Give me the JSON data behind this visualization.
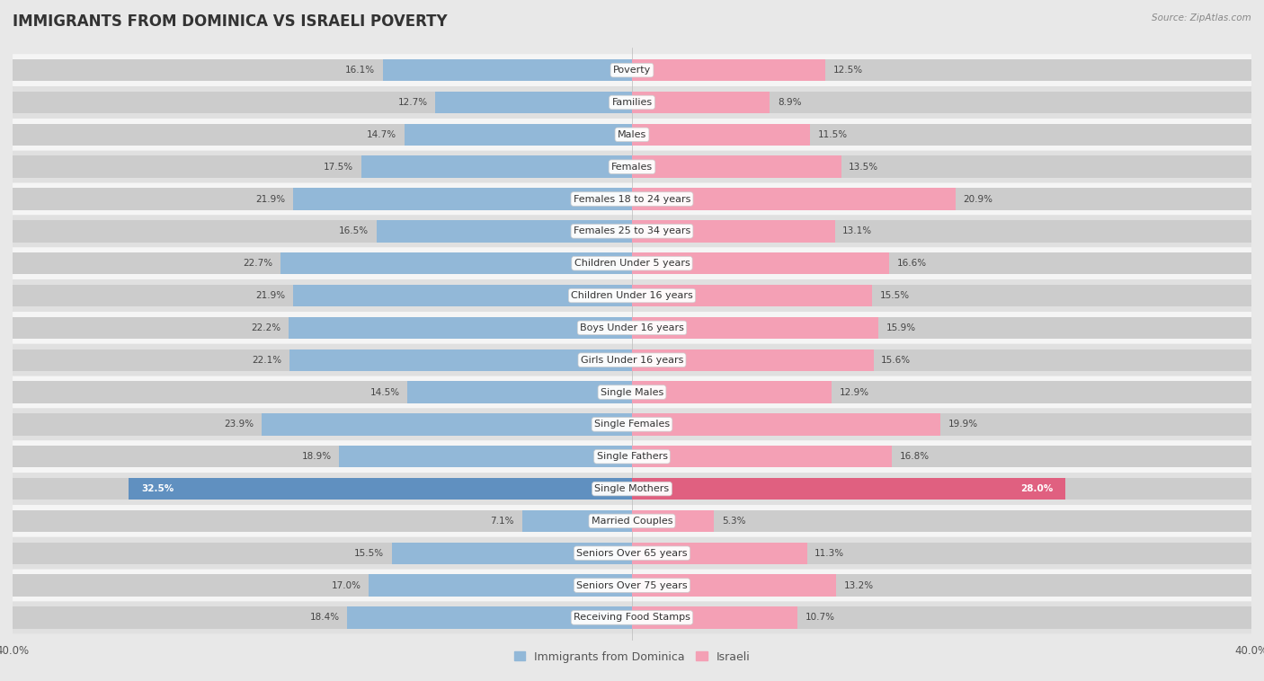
{
  "title": "IMMIGRANTS FROM DOMINICA VS ISRAELI POVERTY",
  "source": "Source: ZipAtlas.com",
  "categories": [
    "Poverty",
    "Families",
    "Males",
    "Females",
    "Females 18 to 24 years",
    "Females 25 to 34 years",
    "Children Under 5 years",
    "Children Under 16 years",
    "Boys Under 16 years",
    "Girls Under 16 years",
    "Single Males",
    "Single Females",
    "Single Fathers",
    "Single Mothers",
    "Married Couples",
    "Seniors Over 65 years",
    "Seniors Over 75 years",
    "Receiving Food Stamps"
  ],
  "dominica_values": [
    16.1,
    12.7,
    14.7,
    17.5,
    21.9,
    16.5,
    22.7,
    21.9,
    22.2,
    22.1,
    14.5,
    23.9,
    18.9,
    32.5,
    7.1,
    15.5,
    17.0,
    18.4
  ],
  "israeli_values": [
    12.5,
    8.9,
    11.5,
    13.5,
    20.9,
    13.1,
    16.6,
    15.5,
    15.9,
    15.6,
    12.9,
    19.9,
    16.8,
    28.0,
    5.3,
    11.3,
    13.2,
    10.7
  ],
  "dominica_color": "#92b8d8",
  "israeli_color": "#f4a0b5",
  "dominica_label": "Immigrants from Dominica",
  "israeli_label": "Israeli",
  "bg_color": "#e8e8e8",
  "row_color_even": "#f5f5f5",
  "row_color_odd": "#e0e0e0",
  "bar_track_color": "#d8d8d8",
  "xlim": 40.0,
  "title_fontsize": 12,
  "label_fontsize": 8,
  "value_fontsize": 7.5,
  "highlight_cat": "Single Mothers",
  "highlight_dom_color": "#6090c0",
  "highlight_isr_color": "#e06080"
}
